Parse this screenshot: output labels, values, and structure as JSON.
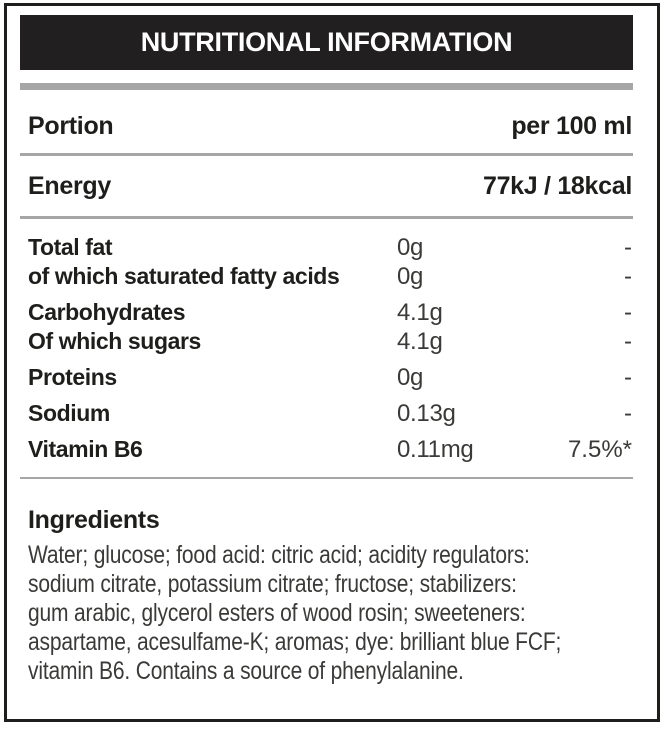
{
  "header": {
    "title": "NUTRITIONAL INFORMATION"
  },
  "summary_rows": {
    "portion": {
      "label": "Portion",
      "value": "per 100 ml"
    },
    "energy": {
      "label": "Energy",
      "value": "77kJ / 18kcal"
    }
  },
  "nutrients": [
    {
      "label": "Total fat",
      "amount": "0g",
      "dv": "-"
    },
    {
      "label": "of which saturated fatty acids",
      "amount": "0g",
      "dv": "-"
    },
    {
      "label": "Carbohydrates",
      "amount": "4.1g",
      "dv": "-"
    },
    {
      "label": "Of which sugars",
      "amount": "4.1g",
      "dv": "-"
    },
    {
      "label": "Proteins",
      "amount": "0g",
      "dv": "-"
    },
    {
      "label": "Sodium",
      "amount": "0.13g",
      "dv": "-"
    },
    {
      "label": "Vitamin B6",
      "amount": "0.11mg",
      "dv": "7.5%*"
    }
  ],
  "ingredients": {
    "heading": "Ingredients",
    "lines": [
      "Water; glucose; food acid: citric acid; acidity regulators:",
      "sodium citrate, potassium citrate; fructose; stabilizers:",
      "gum arabic, glycerol esters of wood rosin; sweeteners:",
      "aspartame, acesulfame-K; aromas; dye: brilliant blue FCF;",
      "vitamin B6. Contains a source of phenylalanine."
    ],
    "full_text": "Water; glucose; food acid: citric acid; acidity regulators: sodium citrate, potassium citrate; fructose; stabilizers: gum arabic, glycerol esters of wood rosin; sweeteners: aspartame, acesulfame-K; aromas; dye: brilliant blue FCF; vitamin B6. Contains a source of phenylalanine."
  },
  "colors": {
    "header_bar": "#211f1f",
    "rule_gray": "#a6a6a6",
    "text_black": "#1e1e1c",
    "value_gray": "#3a3a38"
  }
}
